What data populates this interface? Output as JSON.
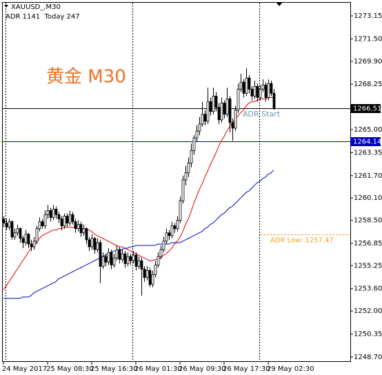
{
  "chart_data": {
    "type": "candlestick",
    "symbol": "XAUUSD_,M30",
    "info": "ADR 1141  Today 247",
    "title": "黄金 M30",
    "candle_color": "#000000",
    "categories": [
      "24 May 2017",
      null,
      null,
      null,
      null,
      null,
      null,
      null,
      null,
      null,
      null,
      null,
      null,
      null,
      null,
      null,
      "25 May 08:30",
      null,
      null,
      null,
      null,
      null,
      null,
      null,
      null,
      null,
      null,
      null,
      null,
      null,
      null,
      null,
      "25 May 16:30",
      null,
      null,
      null,
      null,
      null,
      null,
      null,
      null,
      null,
      null,
      null,
      null,
      null,
      null,
      null,
      "26 May 01:30",
      null,
      null,
      null,
      null,
      null,
      null,
      null,
      null,
      null,
      null,
      null,
      null,
      null,
      null,
      null,
      "26 May 09:30",
      null,
      null,
      null,
      null,
      null,
      null,
      null,
      null,
      null,
      null,
      null,
      null,
      null,
      null,
      null,
      "26 May 17:30",
      null,
      null,
      null,
      null,
      null,
      null,
      null,
      null,
      null,
      null,
      null,
      null,
      null,
      null,
      null,
      "29 May 02:30",
      null,
      null
    ],
    "ohlc": [
      [
        1258.6,
        1258.8,
        1258.0,
        1258.3
      ],
      [
        1258.3,
        1258.6,
        1257.8,
        1258.0
      ],
      [
        1258.0,
        1258.6,
        1257.8,
        1258.4
      ],
      [
        1258.4,
        1258.5,
        1257.1,
        1257.3
      ],
      [
        1257.3,
        1257.9,
        1257.1,
        1257.6
      ],
      [
        1257.6,
        1258.2,
        1257.4,
        1257.9
      ],
      [
        1257.9,
        1258.0,
        1256.9,
        1257.2
      ],
      [
        1257.2,
        1257.4,
        1256.5,
        1256.9
      ],
      [
        1256.9,
        1257.8,
        1256.7,
        1257.5
      ],
      [
        1257.5,
        1257.6,
        1256.5,
        1256.8
      ],
      [
        1256.8,
        1257.1,
        1256.3,
        1256.6
      ],
      [
        1256.6,
        1257.3,
        1256.4,
        1257.0
      ],
      [
        1257.0,
        1258.1,
        1256.8,
        1257.9
      ],
      [
        1257.9,
        1258.7,
        1257.7,
        1258.4
      ],
      [
        1258.4,
        1258.6,
        1257.9,
        1258.1
      ],
      [
        1258.1,
        1259.2,
        1257.9,
        1258.9
      ],
      [
        1258.9,
        1259.6,
        1258.6,
        1259.2
      ],
      [
        1259.2,
        1259.4,
        1258.4,
        1258.7
      ],
      [
        1258.7,
        1259.6,
        1258.5,
        1259.3
      ],
      [
        1259.3,
        1259.5,
        1258.6,
        1258.9
      ],
      [
        1258.9,
        1259.1,
        1258.3,
        1258.6
      ],
      [
        1258.6,
        1258.8,
        1257.8,
        1258.1
      ],
      [
        1258.1,
        1259.0,
        1257.9,
        1258.8
      ],
      [
        1258.8,
        1259.0,
        1258.0,
        1258.3
      ],
      [
        1258.3,
        1259.2,
        1258.1,
        1258.9
      ],
      [
        1258.9,
        1259.1,
        1258.2,
        1258.4
      ],
      [
        1258.4,
        1258.6,
        1257.6,
        1257.9
      ],
      [
        1257.9,
        1258.5,
        1257.7,
        1258.2
      ],
      [
        1258.2,
        1258.4,
        1257.3,
        1257.6
      ],
      [
        1257.6,
        1258.2,
        1257.4,
        1257.9
      ],
      [
        1257.9,
        1258.0,
        1256.8,
        1257.1
      ],
      [
        1257.1,
        1257.3,
        1256.3,
        1256.6
      ],
      [
        1256.6,
        1257.5,
        1256.4,
        1257.2
      ],
      [
        1257.2,
        1257.3,
        1256.1,
        1256.4
      ],
      [
        1256.4,
        1257.2,
        1256.2,
        1256.9
      ],
      [
        1256.9,
        1257.1,
        1254.0,
        1255.2
      ],
      [
        1255.2,
        1256.2,
        1255.0,
        1255.9
      ],
      [
        1255.9,
        1256.1,
        1255.2,
        1255.5
      ],
      [
        1255.5,
        1256.5,
        1255.3,
        1256.2
      ],
      [
        1256.2,
        1256.4,
        1255.0,
        1255.3
      ],
      [
        1255.3,
        1256.1,
        1255.1,
        1255.8
      ],
      [
        1255.8,
        1256.7,
        1255.6,
        1256.4
      ],
      [
        1256.4,
        1256.6,
        1255.4,
        1255.7
      ],
      [
        1255.7,
        1256.4,
        1255.5,
        1256.1
      ],
      [
        1256.1,
        1256.3,
        1255.1,
        1255.4
      ],
      [
        1255.4,
        1256.2,
        1255.2,
        1255.9
      ],
      [
        1255.9,
        1256.1,
        1255.3,
        1255.6
      ],
      [
        1255.6,
        1256.3,
        1255.4,
        1256.0
      ],
      [
        1256.0,
        1256.2,
        1254.9,
        1255.2
      ],
      [
        1255.2,
        1255.9,
        1255.0,
        1255.6
      ],
      [
        1255.6,
        1255.8,
        1253.1,
        1255.0
      ],
      [
        1255.0,
        1255.2,
        1254.1,
        1254.4
      ],
      [
        1254.4,
        1255.2,
        1254.2,
        1254.9
      ],
      [
        1254.9,
        1255.1,
        1253.7,
        1253.9
      ],
      [
        1253.9,
        1254.9,
        1253.7,
        1254.6
      ],
      [
        1254.6,
        1255.6,
        1254.4,
        1255.3
      ],
      [
        1255.3,
        1256.2,
        1255.1,
        1255.9
      ],
      [
        1255.9,
        1256.7,
        1255.7,
        1256.4
      ],
      [
        1256.4,
        1257.3,
        1256.2,
        1257.0
      ],
      [
        1257.0,
        1257.9,
        1256.8,
        1257.6
      ],
      [
        1257.6,
        1257.8,
        1257.1,
        1257.4
      ],
      [
        1257.4,
        1258.4,
        1257.2,
        1258.1
      ],
      [
        1258.1,
        1258.3,
        1257.6,
        1257.9
      ],
      [
        1257.9,
        1258.8,
        1257.7,
        1258.5
      ],
      [
        1258.5,
        1260.2,
        1258.3,
        1259.9
      ],
      [
        1259.9,
        1261.7,
        1259.7,
        1261.4
      ],
      [
        1261.4,
        1262.4,
        1261.0,
        1261.9
      ],
      [
        1261.9,
        1263.0,
        1261.6,
        1262.6
      ],
      [
        1262.6,
        1264.0,
        1262.3,
        1263.5
      ],
      [
        1263.5,
        1264.6,
        1263.2,
        1264.4
      ],
      [
        1264.4,
        1265.3,
        1264.1,
        1264.9
      ],
      [
        1264.9,
        1265.9,
        1264.6,
        1265.4
      ],
      [
        1265.4,
        1267.0,
        1265.2,
        1266.1
      ],
      [
        1266.1,
        1266.4,
        1265.3,
        1265.6
      ],
      [
        1265.6,
        1268.0,
        1265.4,
        1267.0
      ],
      [
        1267.0,
        1267.3,
        1266.0,
        1266.3
      ],
      [
        1266.3,
        1268.0,
        1266.1,
        1267.4
      ],
      [
        1267.4,
        1267.7,
        1266.3,
        1266.6
      ],
      [
        1266.6,
        1266.9,
        1265.4,
        1265.7
      ],
      [
        1265.7,
        1267.3,
        1265.5,
        1266.9
      ],
      [
        1266.9,
        1267.1,
        1265.8,
        1266.1
      ],
      [
        1266.1,
        1268.0,
        1265.9,
        1267.2
      ],
      [
        1267.2,
        1267.4,
        1264.8,
        1265.5
      ],
      [
        1265.5,
        1265.8,
        1264.2,
        1265.1
      ],
      [
        1265.1,
        1266.7,
        1264.9,
        1266.4
      ],
      [
        1266.4,
        1268.3,
        1266.2,
        1267.9
      ],
      [
        1267.9,
        1269.0,
        1267.7,
        1268.4
      ],
      [
        1268.4,
        1268.6,
        1267.3,
        1267.6
      ],
      [
        1267.6,
        1269.4,
        1267.4,
        1268.7
      ],
      [
        1268.7,
        1268.9,
        1267.6,
        1267.9
      ],
      [
        1267.9,
        1268.1,
        1267.1,
        1267.4
      ],
      [
        1267.4,
        1268.5,
        1267.2,
        1268.1
      ],
      [
        1268.1,
        1268.3,
        1267.0,
        1267.3
      ],
      [
        1267.3,
        1268.2,
        1267.1,
        1267.9
      ],
      [
        1267.9,
        1268.6,
        1267.7,
        1268.2
      ],
      [
        1268.2,
        1268.4,
        1267.0,
        1267.3
      ],
      [
        1267.3,
        1268.6,
        1267.1,
        1268.3
      ],
      [
        1268.3,
        1268.5,
        1267.4,
        1267.6
      ],
      [
        1267.6,
        1267.9,
        1266.4,
        1266.51
      ]
    ],
    "series": [
      {
        "color": "#e00000",
        "values": [
          1253.5,
          1253.8,
          1254.1,
          1254.4,
          1254.7,
          1255.0,
          1255.3,
          1255.6,
          1255.9,
          1256.2,
          1256.5,
          1256.7,
          1256.9,
          1257.2,
          1257.4,
          1257.5,
          1257.6,
          1257.7,
          1257.8,
          1257.8,
          1257.9,
          1257.9,
          1258.0,
          1258.0,
          1258.0,
          1258.0,
          1258.0,
          1258.0,
          1257.9,
          1257.9,
          1257.9,
          1257.8,
          1257.7,
          1257.5,
          1257.4,
          1257.3,
          1257.2,
          1257.1,
          1257.0,
          1256.9,
          1256.8,
          1256.7,
          1256.6,
          1256.6,
          1256.5,
          1256.4,
          1256.3,
          1256.2,
          1256.1,
          1256.0,
          1255.9,
          1255.8,
          1255.7,
          1255.6,
          1255.6,
          1255.7,
          1255.7,
          1255.8,
          1256.0,
          1256.1,
          1256.3,
          1256.5,
          1256.8,
          1257.0,
          1257.3,
          1257.7,
          1258.2,
          1258.6,
          1259.1,
          1259.7,
          1260.2,
          1260.7,
          1261.1,
          1261.6,
          1262.0,
          1262.5,
          1262.9,
          1263.3,
          1263.8,
          1264.2,
          1264.5,
          1264.9,
          1265.2,
          1265.5,
          1265.7,
          1266.0,
          1266.2,
          1266.4,
          1266.7,
          1266.9,
          1267.0,
          1267.0,
          1267.1,
          1267.2,
          1267.2,
          1267.2,
          1267.3,
          1267.3,
          1267.3
        ]
      },
      {
        "color": "#0000c0",
        "values": [
          1252.9,
          1252.9,
          1252.9,
          1252.9,
          1252.9,
          1252.9,
          1252.9,
          1253.0,
          1253.0,
          1253.0,
          1253.1,
          1253.3,
          1253.4,
          1253.5,
          1253.6,
          1253.7,
          1253.8,
          1253.9,
          1254.0,
          1254.1,
          1254.3,
          1254.4,
          1254.5,
          1254.6,
          1254.7,
          1254.8,
          1254.9,
          1255.0,
          1255.1,
          1255.2,
          1255.3,
          1255.4,
          1255.5,
          1255.6,
          1255.7,
          1255.8,
          1255.9,
          1256.0,
          1256.1,
          1256.2,
          1256.3,
          1256.3,
          1256.4,
          1256.4,
          1256.5,
          1256.5,
          1256.6,
          1256.6,
          1256.7,
          1256.7,
          1256.7,
          1256.7,
          1256.7,
          1256.7,
          1256.7,
          1256.7,
          1256.8,
          1256.8,
          1256.8,
          1256.8,
          1256.8,
          1256.9,
          1256.9,
          1256.9,
          1256.9,
          1257.0,
          1257.1,
          1257.2,
          1257.3,
          1257.4,
          1257.5,
          1257.6,
          1257.7,
          1257.9,
          1258.0,
          1258.2,
          1258.3,
          1258.5,
          1258.7,
          1258.9,
          1259.0,
          1259.2,
          1259.4,
          1259.5,
          1259.7,
          1259.9,
          1260.1,
          1260.3,
          1260.5,
          1260.6,
          1260.8,
          1261.0,
          1261.2,
          1261.3,
          1261.5,
          1261.6,
          1261.8,
          1261.9,
          1262.1
        ]
      }
    ],
    "levels": [
      {
        "value": 1266.51,
        "color": "#000000"
      },
      {
        "value": 1264.14,
        "color": "#0000c0"
      }
    ],
    "adr_low": {
      "value": 1257.47,
      "label": "ADR Low: 1257.47",
      "color": "#f0a020"
    },
    "annotation": "ADR Start",
    "ylim": [
      1248.35,
      1274.14
    ],
    "yticks": [
      1273.15,
      {
        "value": 1271.5,
        "label": "1271.50"
      },
      {
        "value": 1269.9,
        "label": "1269.90"
      },
      1268.25,
      {
        "value": 1265,
        "label": "1265.00"
      },
      1263.35,
      {
        "value": 1261.7,
        "label": "1261.70"
      },
      {
        "value": 1260.1,
        "label": "1260.10"
      },
      {
        "value": 1258.5,
        "label": "1258.50"
      },
      1256.85,
      1255.25,
      {
        "value": 1253.6,
        "label": "1253.60"
      },
      {
        "value": 1252,
        "label": "1252.00"
      },
      1250.35,
      {
        "value": 1248.7,
        "label": "1248.70"
      }
    ]
  }
}
